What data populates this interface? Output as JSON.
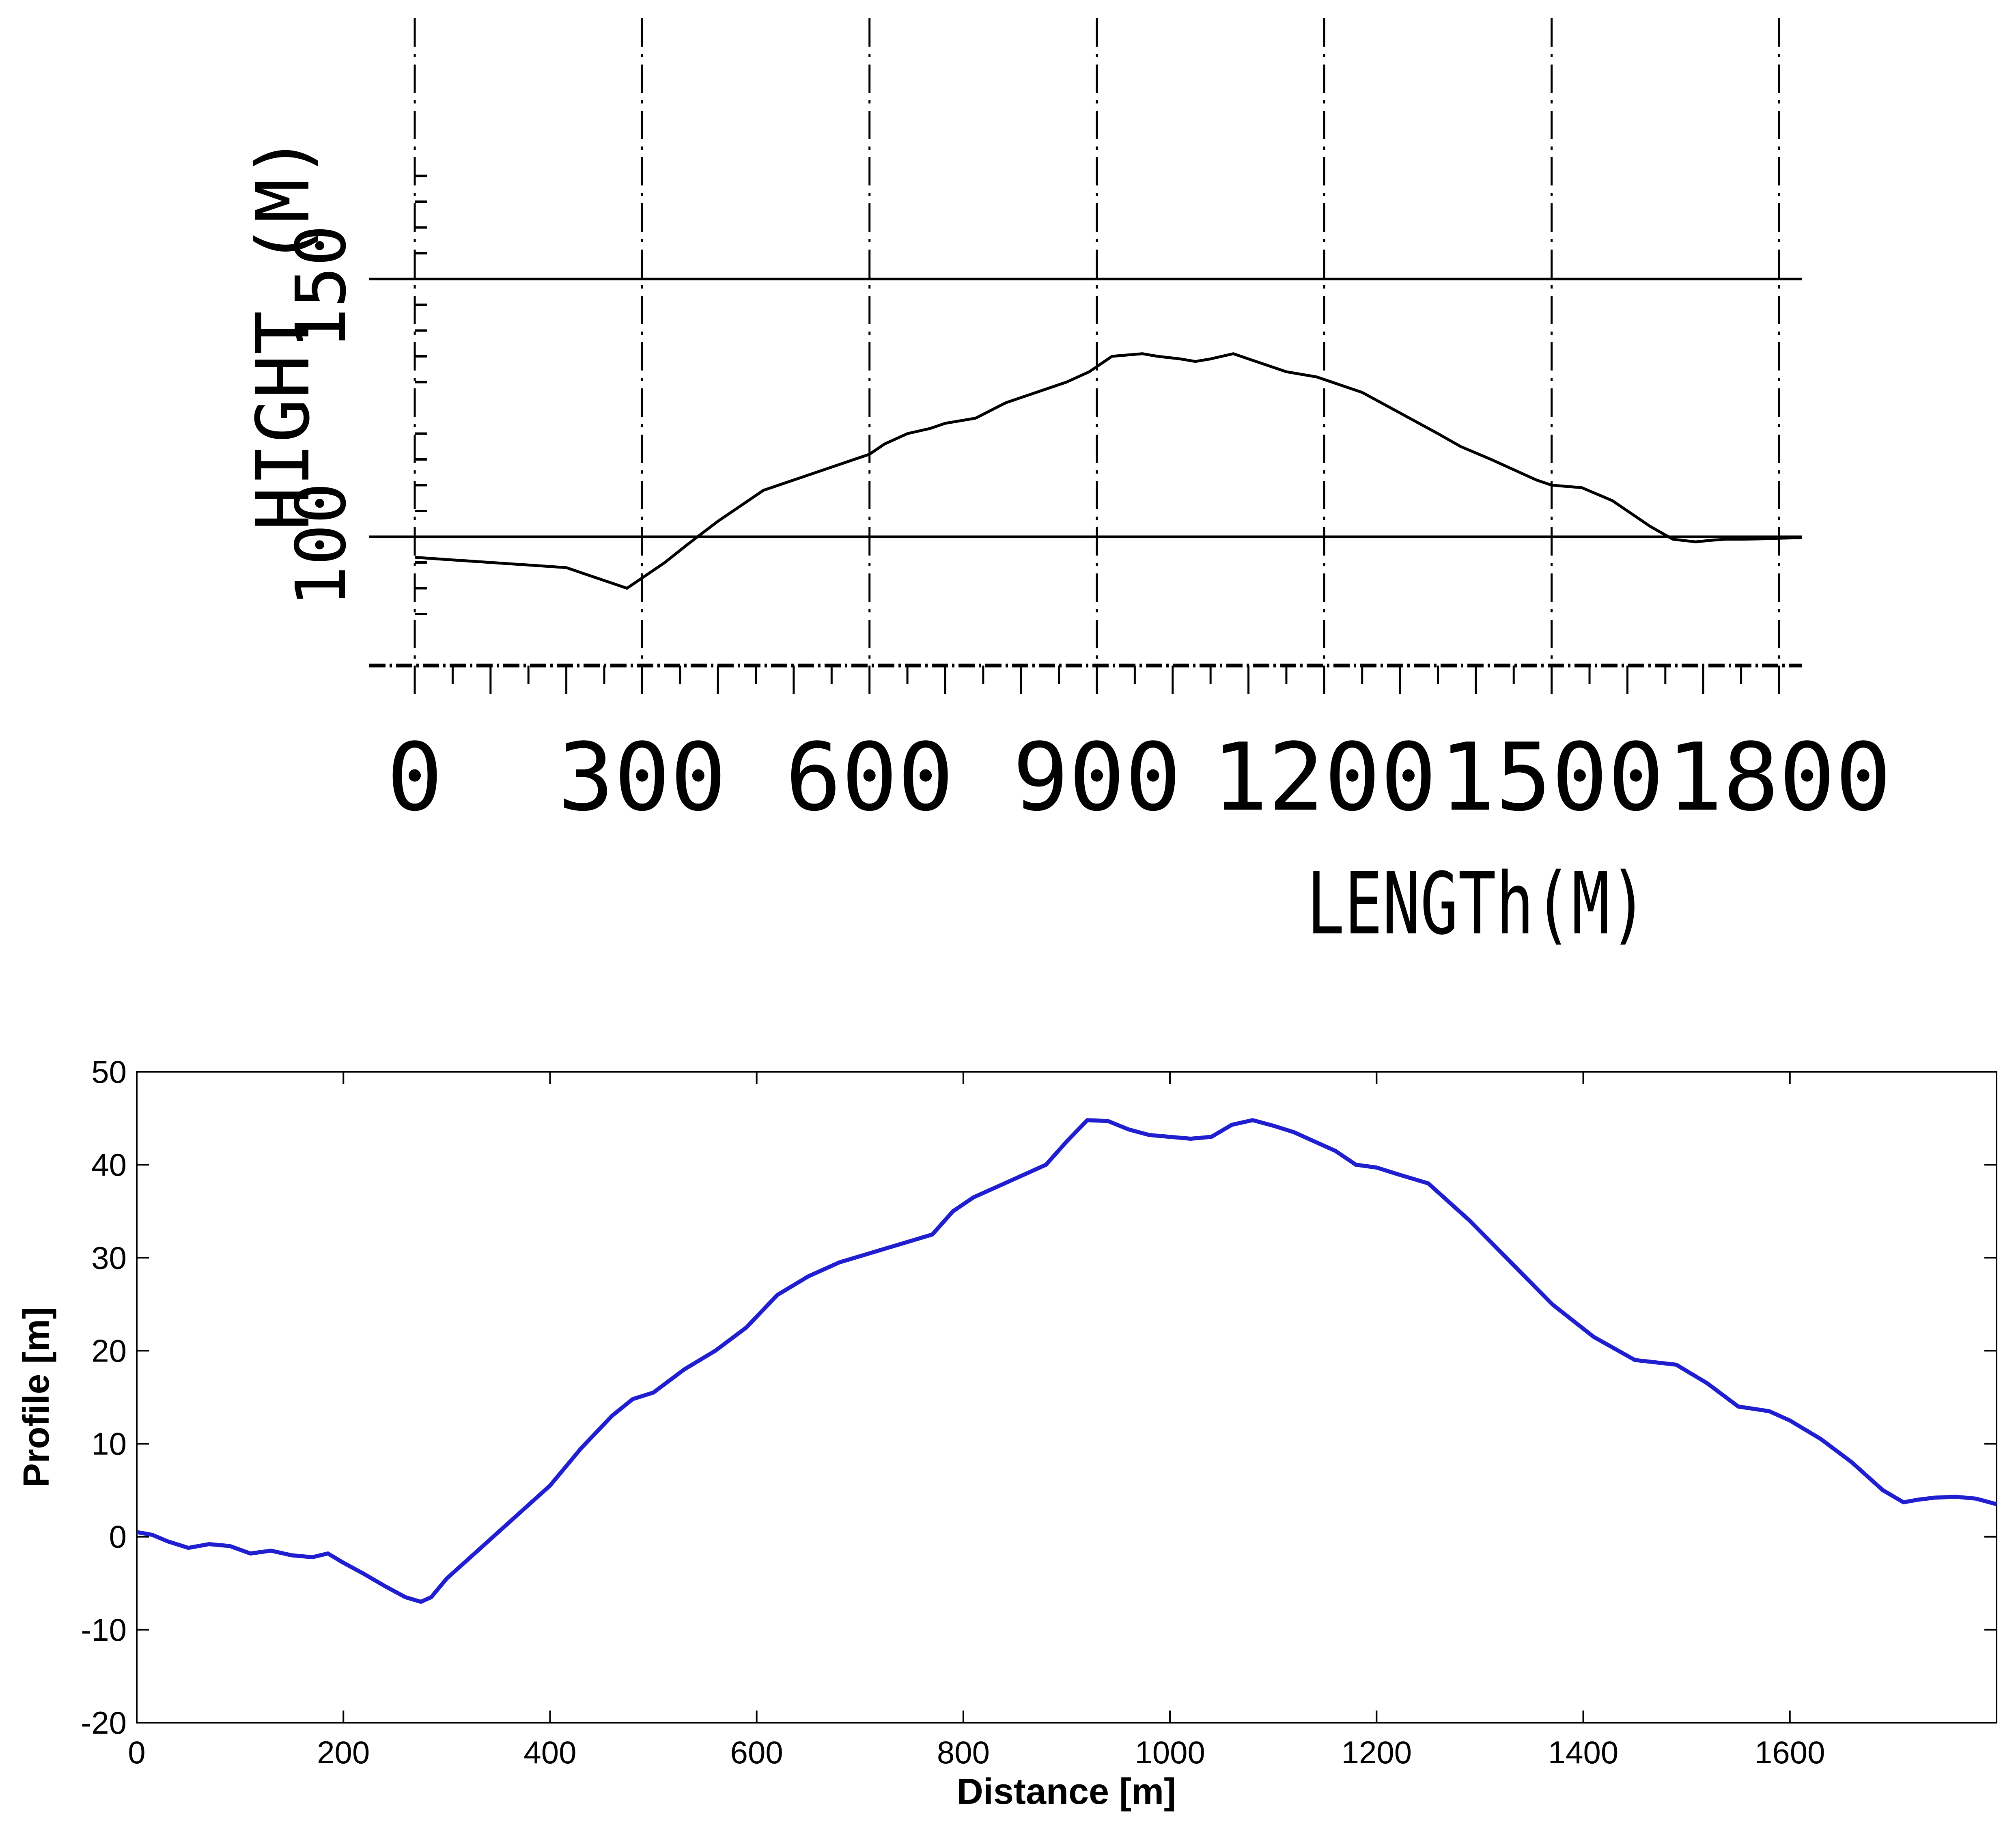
{
  "chart_data": [
    {
      "type": "line",
      "title": "",
      "xlabel": "LENGTh(M)",
      "ylabel": "HIGHT (M)",
      "xlim": [
        -60,
        1830
      ],
      "ylim": [
        75,
        175
      ],
      "xticks": [
        0,
        300,
        600,
        900,
        1200,
        1500,
        1800
      ],
      "xtick_labels": [
        "0",
        "300",
        "600",
        "900",
        "1200",
        "1500",
        "1800"
      ],
      "yticks": [
        100,
        150
      ],
      "ytick_labels": [
        "100",
        "150"
      ],
      "grid": true,
      "series": [
        {
          "x": [
            0,
            50,
            100,
            150,
            200,
            230,
            260,
            280,
            300,
            330,
            360,
            400,
            440,
            460,
            480,
            500,
            540,
            580,
            600,
            620,
            650,
            680,
            700,
            740,
            780,
            820,
            860,
            890,
            920,
            960,
            980,
            1010,
            1030,
            1050,
            1080,
            1100,
            1120,
            1150,
            1190,
            1210,
            1250,
            1300,
            1350,
            1380,
            1420,
            1450,
            1480,
            1500,
            1540,
            1580,
            1600,
            1630,
            1660,
            1690,
            1710,
            1730,
            1750,
            1780,
            1800,
            1830
          ],
          "y": [
            96,
            95.5,
            95,
            94.5,
            94,
            92.5,
            91,
            90,
            92,
            95,
            98.5,
            103,
            107,
            109,
            110,
            111,
            113,
            115,
            116,
            118,
            120,
            121,
            122,
            123,
            126,
            128,
            130,
            132,
            135,
            135.5,
            135,
            134.5,
            134,
            134.5,
            135.5,
            134.5,
            133.5,
            132,
            131,
            130,
            128,
            124,
            120,
            117.5,
            115,
            113,
            111,
            110,
            109.5,
            107,
            105,
            102,
            99.5,
            99,
            99.3,
            99.5,
            99.5,
            99.6,
            99.7,
            99.8
          ]
        }
      ]
    },
    {
      "type": "line",
      "title": "",
      "xlabel": "Distance [m]",
      "ylabel": "Profile [m]",
      "xlim": [
        0,
        1800
      ],
      "ylim": [
        -20,
        50
      ],
      "xticks": [
        0,
        200,
        400,
        600,
        800,
        1000,
        1200,
        1400,
        1600
      ],
      "xtick_labels": [
        "0",
        "200",
        "400",
        "600",
        "800",
        "1000",
        "1200",
        "1400",
        "1600"
      ],
      "yticks": [
        -20,
        -10,
        0,
        10,
        20,
        30,
        40,
        50
      ],
      "ytick_labels": [
        "-20",
        "-10",
        "0",
        "10",
        "20",
        "30",
        "40",
        "50"
      ],
      "grid": false,
      "color": "#1f1fd0",
      "series": [
        {
          "x": [
            0,
            15,
            30,
            50,
            70,
            90,
            110,
            130,
            150,
            170,
            185,
            200,
            220,
            240,
            260,
            275,
            285,
            300,
            330,
            360,
            400,
            430,
            460,
            480,
            500,
            530,
            560,
            590,
            620,
            650,
            680,
            710,
            740,
            770,
            790,
            810,
            840,
            880,
            900,
            920,
            940,
            960,
            980,
            1000,
            1020,
            1040,
            1060,
            1080,
            1100,
            1120,
            1140,
            1160,
            1180,
            1200,
            1220,
            1250,
            1290,
            1330,
            1370,
            1410,
            1450,
            1490,
            1520,
            1550,
            1580,
            1600,
            1630,
            1660,
            1690,
            1710,
            1725,
            1740,
            1760,
            1780,
            1800
          ],
          "y": [
            0.5,
            0.2,
            -0.5,
            -1.2,
            -0.8,
            -1.0,
            -1.8,
            -1.5,
            -2.0,
            -2.2,
            -1.8,
            -2.8,
            -4.0,
            -5.3,
            -6.5,
            -7.0,
            -6.5,
            -4.5,
            -1.5,
            1.5,
            5.5,
            9.5,
            13.0,
            14.8,
            15.5,
            18.0,
            20.0,
            22.5,
            26.0,
            28.0,
            29.5,
            30.5,
            31.5,
            32.5,
            35.0,
            36.5,
            38.0,
            40.0,
            42.5,
            44.8,
            44.7,
            43.8,
            43.2,
            43.0,
            42.8,
            43.0,
            44.3,
            44.8,
            44.2,
            43.5,
            42.5,
            41.5,
            40.0,
            39.7,
            39.0,
            38.0,
            34.0,
            29.5,
            25.0,
            21.5,
            19.0,
            18.5,
            16.5,
            14.0,
            13.5,
            12.5,
            10.5,
            8.0,
            5.0,
            3.7,
            4.0,
            4.2,
            4.3,
            4.1,
            3.5
          ]
        }
      ]
    }
  ]
}
